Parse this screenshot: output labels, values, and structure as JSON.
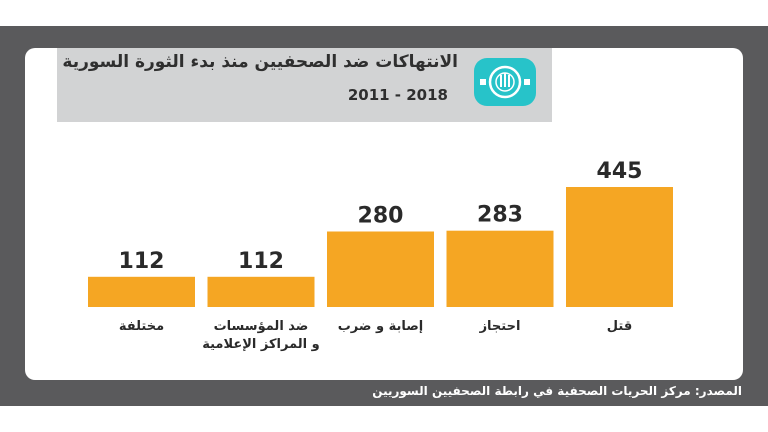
{
  "header": {
    "title": "الانتهاكات ضد الصحفيين منذ بدء الثورة السورية",
    "subtitle": "2011 - 2018"
  },
  "footer": {
    "source": "المصدر: مركز الحريات الصحفية في رابطة الصحفيين السوريين"
  },
  "colors": {
    "bar": "#f5a623",
    "frame": "#5a5a5c",
    "title_box": "#d2d3d4",
    "logo": "#27c3c9"
  },
  "icons": {
    "logo": "association-logo-icon"
  },
  "chart_data": {
    "type": "bar",
    "categories": [
      "قتل",
      "احتجاز",
      "إصابة و ضرب",
      "ضد المؤسسات\nو المراكز الإعلامية",
      "مختلفة"
    ],
    "values": [
      445,
      283,
      280,
      112,
      112
    ],
    "data_labels": [
      "445",
      "283",
      "280",
      "112",
      "112"
    ],
    "title": "الانتهاكات ضد الصحفيين منذ بدء الثورة السورية",
    "xlabel": "",
    "ylabel": "",
    "grid": false,
    "order": "right-to-left"
  }
}
